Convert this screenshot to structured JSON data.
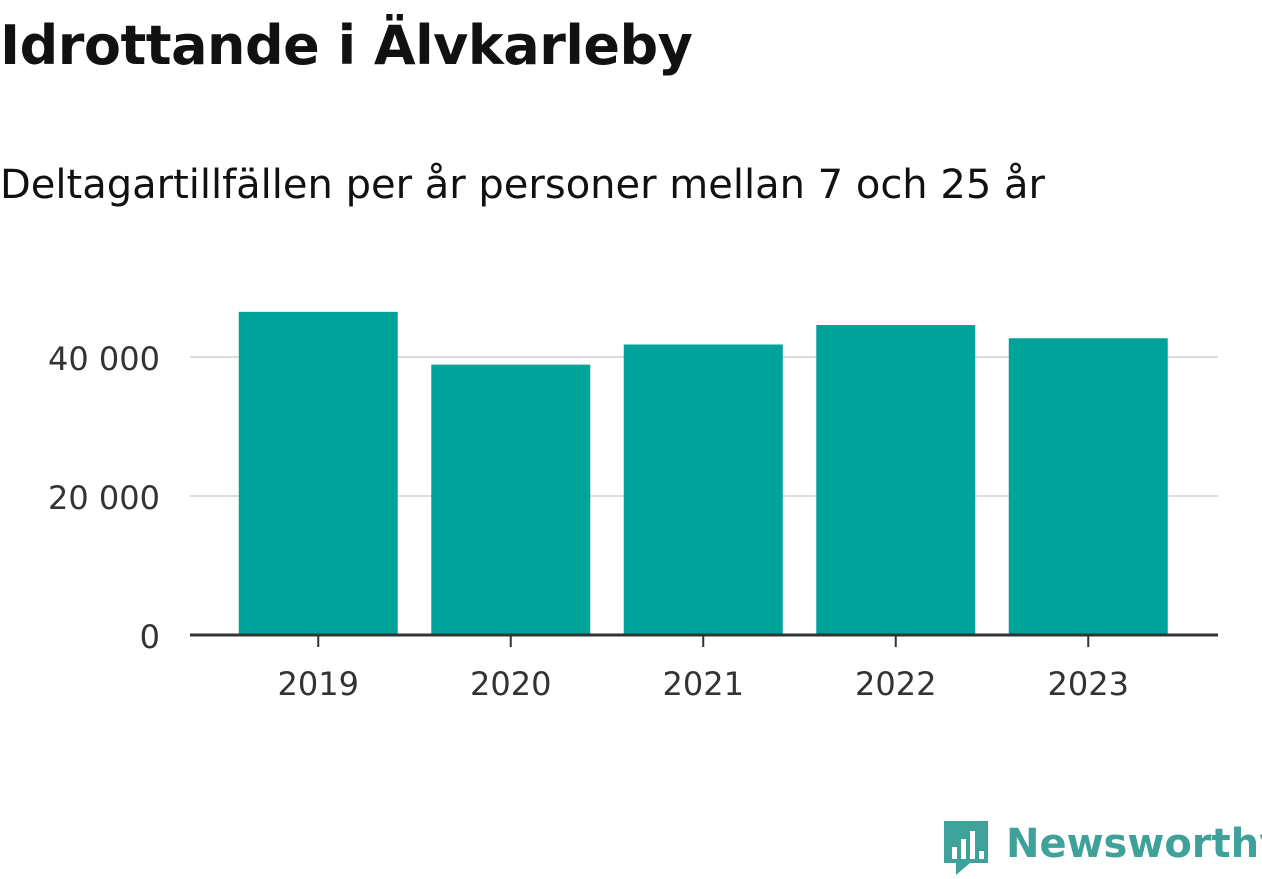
{
  "header": {
    "title": "Idrottande i Älvkarleby",
    "subtitle": "Deltagartillfällen per år personer mellan 7 och 25 år"
  },
  "brand": {
    "name": "Newsworthy",
    "icon": "newsworthy-logo-icon",
    "color": "#3fa29a"
  },
  "chart_data": {
    "type": "bar",
    "categories": [
      "2019",
      "2020",
      "2021",
      "2022",
      "2023"
    ],
    "values": [
      46500,
      38900,
      41800,
      44600,
      42700
    ],
    "yticks": [
      0,
      20000,
      40000
    ],
    "ytick_labels": [
      "0",
      "20 000",
      "40 000"
    ],
    "ylim": [
      0,
      50000
    ],
    "grid": true,
    "bar_color": "#00a39a",
    "axis_color": "#333333",
    "grid_color": "#dddddd"
  }
}
